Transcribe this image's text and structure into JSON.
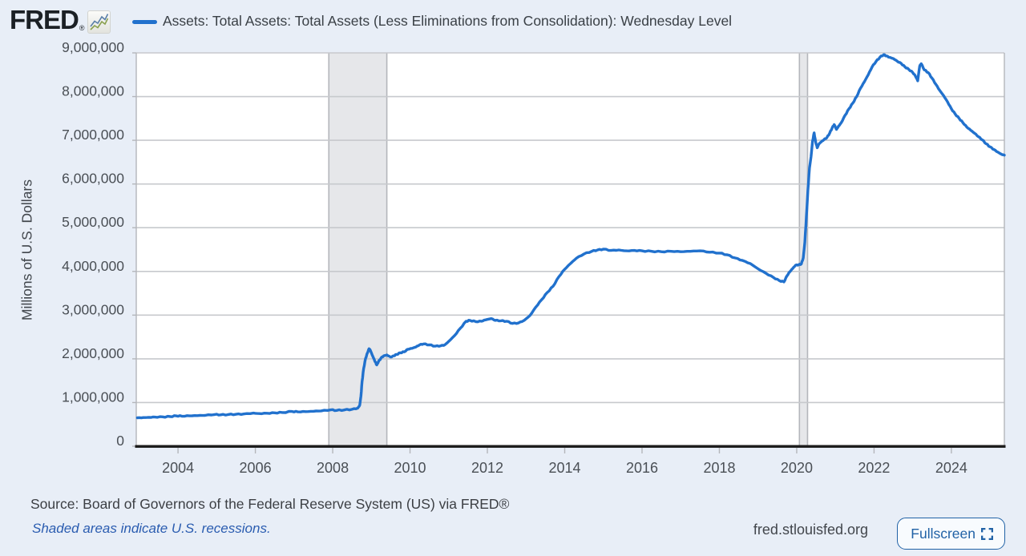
{
  "header": {
    "logo_text": "FRED",
    "logo_registered": "®"
  },
  "chart_data": {
    "type": "line",
    "title": "Assets: Total Assets: Total Assets (Less Eliminations from Consolidation): Wednesday Level",
    "ylabel": "Millions of U.S. Dollars",
    "xlabel": "",
    "grid": "horizontal-only",
    "legend_position": "top",
    "xlim": [
      2002.92,
      2025.37
    ],
    "ylim": [
      0,
      9000000
    ],
    "xticks": [
      {
        "value": 2004,
        "label": "2004"
      },
      {
        "value": 2006,
        "label": "2006"
      },
      {
        "value": 2008,
        "label": "2008"
      },
      {
        "value": 2010,
        "label": "2010"
      },
      {
        "value": 2012,
        "label": "2012"
      },
      {
        "value": 2014,
        "label": "2014"
      },
      {
        "value": 2016,
        "label": "2016"
      },
      {
        "value": 2018,
        "label": "2018"
      },
      {
        "value": 2020,
        "label": "2020"
      },
      {
        "value": 2022,
        "label": "2022"
      },
      {
        "value": 2024,
        "label": "2024"
      }
    ],
    "yticks": [
      {
        "value": 0,
        "label": "0"
      },
      {
        "value": 1000000,
        "label": "1,000,000"
      },
      {
        "value": 2000000,
        "label": "2,000,000"
      },
      {
        "value": 3000000,
        "label": "3,000,000"
      },
      {
        "value": 4000000,
        "label": "4,000,000"
      },
      {
        "value": 5000000,
        "label": "5,000,000"
      },
      {
        "value": 6000000,
        "label": "6,000,000"
      },
      {
        "value": 7000000,
        "label": "7,000,000"
      },
      {
        "value": 8000000,
        "label": "8,000,000"
      },
      {
        "value": 9000000,
        "label": "9,000,000"
      }
    ],
    "recessions": [
      {
        "from": 2007.9,
        "to": 2009.4
      },
      {
        "from": 2020.07,
        "to": 2020.28
      }
    ],
    "colors": {
      "background": "#e8eef7",
      "plot_bg": "#ffffff",
      "line": "#2171cd",
      "grid": "#c7c9cd",
      "recession_band": "#e6e7ea",
      "band_edge": "#b4b6bb",
      "axis": "#1b1b1b",
      "tick_text": "#4a4f55",
      "accent_blue": "#2162a6",
      "link_blue": "#2a5cb0"
    },
    "series": [
      {
        "points": [
          [
            2002.95,
            650000
          ],
          [
            2003.1,
            656000
          ],
          [
            2003.25,
            662000
          ],
          [
            2003.4,
            668000
          ],
          [
            2003.6,
            672000
          ],
          [
            2003.8,
            678000
          ],
          [
            2003.95,
            695000
          ],
          [
            2004.1,
            688000
          ],
          [
            2004.3,
            695000
          ],
          [
            2004.5,
            700000
          ],
          [
            2004.7,
            706000
          ],
          [
            2004.95,
            726000
          ],
          [
            2005.1,
            718000
          ],
          [
            2005.3,
            725000
          ],
          [
            2005.5,
            732000
          ],
          [
            2005.7,
            738000
          ],
          [
            2005.95,
            758000
          ],
          [
            2006.1,
            748000
          ],
          [
            2006.3,
            756000
          ],
          [
            2006.5,
            765000
          ],
          [
            2006.7,
            772000
          ],
          [
            2006.95,
            796000
          ],
          [
            2007.1,
            786000
          ],
          [
            2007.3,
            791000
          ],
          [
            2007.5,
            800000
          ],
          [
            2007.7,
            808000
          ],
          [
            2007.95,
            832000
          ],
          [
            2008.1,
            820000
          ],
          [
            2008.3,
            831000
          ],
          [
            2008.5,
            845000
          ],
          [
            2008.65,
            872000
          ],
          [
            2008.7,
            940000
          ],
          [
            2008.73,
            1150000
          ],
          [
            2008.76,
            1480000
          ],
          [
            2008.8,
            1780000
          ],
          [
            2008.85,
            2010000
          ],
          [
            2008.9,
            2140000
          ],
          [
            2008.94,
            2230000
          ],
          [
            2008.97,
            2200000
          ],
          [
            2009.02,
            2090000
          ],
          [
            2009.06,
            2010000
          ],
          [
            2009.1,
            1930000
          ],
          [
            2009.14,
            1860000
          ],
          [
            2009.18,
            1930000
          ],
          [
            2009.25,
            2020000
          ],
          [
            2009.32,
            2070000
          ],
          [
            2009.4,
            2090000
          ],
          [
            2009.5,
            2040000
          ],
          [
            2009.58,
            2070000
          ],
          [
            2009.65,
            2100000
          ],
          [
            2009.75,
            2140000
          ],
          [
            2009.85,
            2160000
          ],
          [
            2009.95,
            2220000
          ],
          [
            2010.05,
            2240000
          ],
          [
            2010.15,
            2270000
          ],
          [
            2010.25,
            2320000
          ],
          [
            2010.35,
            2340000
          ],
          [
            2010.5,
            2320000
          ],
          [
            2010.65,
            2290000
          ],
          [
            2010.8,
            2300000
          ],
          [
            2010.9,
            2320000
          ],
          [
            2011.0,
            2400000
          ],
          [
            2011.15,
            2530000
          ],
          [
            2011.3,
            2700000
          ],
          [
            2011.45,
            2860000
          ],
          [
            2011.55,
            2880000
          ],
          [
            2011.7,
            2850000
          ],
          [
            2011.85,
            2860000
          ],
          [
            2011.95,
            2890000
          ],
          [
            2012.1,
            2920000
          ],
          [
            2012.2,
            2880000
          ],
          [
            2012.35,
            2870000
          ],
          [
            2012.5,
            2860000
          ],
          [
            2012.65,
            2810000
          ],
          [
            2012.8,
            2820000
          ],
          [
            2012.95,
            2880000
          ],
          [
            2013.1,
            2990000
          ],
          [
            2013.25,
            3180000
          ],
          [
            2013.4,
            3350000
          ],
          [
            2013.55,
            3520000
          ],
          [
            2013.7,
            3660000
          ],
          [
            2013.85,
            3880000
          ],
          [
            2014.0,
            4050000
          ],
          [
            2014.15,
            4180000
          ],
          [
            2014.3,
            4300000
          ],
          [
            2014.5,
            4400000
          ],
          [
            2014.7,
            4460000
          ],
          [
            2014.85,
            4490000
          ],
          [
            2015.0,
            4510000
          ],
          [
            2015.2,
            4480000
          ],
          [
            2015.4,
            4490000
          ],
          [
            2015.6,
            4470000
          ],
          [
            2015.8,
            4480000
          ],
          [
            2016.0,
            4470000
          ],
          [
            2016.25,
            4460000
          ],
          [
            2016.5,
            4450000
          ],
          [
            2016.75,
            4460000
          ],
          [
            2017.0,
            4450000
          ],
          [
            2017.25,
            4460000
          ],
          [
            2017.5,
            4470000
          ],
          [
            2017.75,
            4440000
          ],
          [
            2018.0,
            4420000
          ],
          [
            2018.2,
            4380000
          ],
          [
            2018.4,
            4310000
          ],
          [
            2018.6,
            4250000
          ],
          [
            2018.8,
            4180000
          ],
          [
            2019.0,
            4060000
          ],
          [
            2019.2,
            3960000
          ],
          [
            2019.4,
            3860000
          ],
          [
            2019.55,
            3790000
          ],
          [
            2019.67,
            3760000
          ],
          [
            2019.75,
            3900000
          ],
          [
            2019.82,
            3990000
          ],
          [
            2019.9,
            4070000
          ],
          [
            2019.97,
            4140000
          ],
          [
            2020.05,
            4150000
          ],
          [
            2020.12,
            4170000
          ],
          [
            2020.17,
            4310000
          ],
          [
            2020.21,
            4670000
          ],
          [
            2020.25,
            5250000
          ],
          [
            2020.29,
            5860000
          ],
          [
            2020.33,
            6370000
          ],
          [
            2020.37,
            6620000
          ],
          [
            2020.41,
            6980000
          ],
          [
            2020.45,
            7170000
          ],
          [
            2020.49,
            6960000
          ],
          [
            2020.53,
            6830000
          ],
          [
            2020.58,
            6920000
          ],
          [
            2020.63,
            6960000
          ],
          [
            2020.7,
            7010000
          ],
          [
            2020.78,
            7060000
          ],
          [
            2020.85,
            7160000
          ],
          [
            2020.92,
            7290000
          ],
          [
            2020.97,
            7360000
          ],
          [
            2021.03,
            7250000
          ],
          [
            2021.08,
            7320000
          ],
          [
            2021.15,
            7400000
          ],
          [
            2021.25,
            7570000
          ],
          [
            2021.35,
            7720000
          ],
          [
            2021.45,
            7850000
          ],
          [
            2021.55,
            8000000
          ],
          [
            2021.65,
            8190000
          ],
          [
            2021.75,
            8340000
          ],
          [
            2021.85,
            8500000
          ],
          [
            2021.95,
            8680000
          ],
          [
            2022.05,
            8800000
          ],
          [
            2022.15,
            8900000
          ],
          [
            2022.25,
            8960000
          ],
          [
            2022.32,
            8930000
          ],
          [
            2022.4,
            8900000
          ],
          [
            2022.5,
            8870000
          ],
          [
            2022.6,
            8810000
          ],
          [
            2022.7,
            8760000
          ],
          [
            2022.8,
            8680000
          ],
          [
            2022.9,
            8620000
          ],
          [
            2023.0,
            8550000
          ],
          [
            2023.07,
            8470000
          ],
          [
            2023.13,
            8360000
          ],
          [
            2023.18,
            8700000
          ],
          [
            2023.22,
            8750000
          ],
          [
            2023.3,
            8610000
          ],
          [
            2023.4,
            8550000
          ],
          [
            2023.5,
            8420000
          ],
          [
            2023.6,
            8280000
          ],
          [
            2023.7,
            8140000
          ],
          [
            2023.8,
            8020000
          ],
          [
            2023.9,
            7880000
          ],
          [
            2024.0,
            7720000
          ],
          [
            2024.1,
            7600000
          ],
          [
            2024.2,
            7500000
          ],
          [
            2024.3,
            7400000
          ],
          [
            2024.4,
            7300000
          ],
          [
            2024.5,
            7230000
          ],
          [
            2024.6,
            7160000
          ],
          [
            2024.7,
            7080000
          ],
          [
            2024.8,
            7010000
          ],
          [
            2024.9,
            6920000
          ],
          [
            2025.0,
            6850000
          ],
          [
            2025.1,
            6790000
          ],
          [
            2025.2,
            6730000
          ],
          [
            2025.3,
            6680000
          ],
          [
            2025.37,
            6660000
          ]
        ]
      }
    ]
  },
  "footer": {
    "source": "Source: Board of Governors of the Federal Reserve System (US) via FRED®",
    "note": "Shaded areas indicate U.S. recessions.",
    "site": "fred.stlouisfed.org",
    "fullscreen_label": "Fullscreen"
  }
}
